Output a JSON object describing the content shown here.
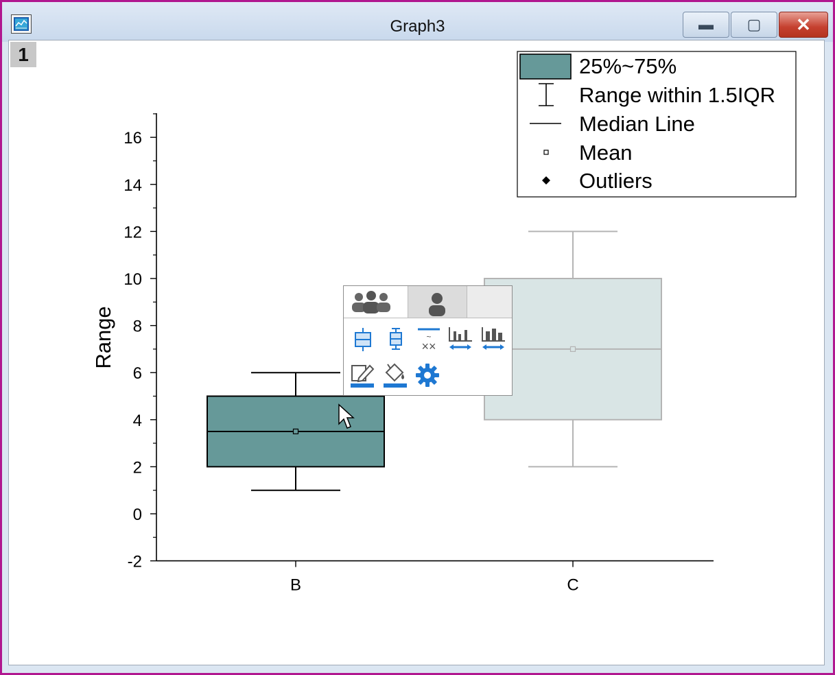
{
  "window": {
    "title": "Graph3",
    "layer_number": "1",
    "controls": {
      "minimize": "▬",
      "maximize": "▢",
      "close": "✕"
    }
  },
  "colors": {
    "box_fill": "#669999",
    "box_fill_faded": "#d9e5e5",
    "box_stroke": "#000000",
    "faded_stroke": "#b4b4b4",
    "toolbar_blue": "#1e78d2",
    "toolbar_gray": "#555555"
  },
  "chart_data": {
    "type": "box",
    "ylabel": "Range",
    "xlabel": "",
    "ylim": [
      -2,
      17
    ],
    "y_ticks": [
      -2,
      0,
      2,
      4,
      6,
      8,
      10,
      12,
      14,
      16
    ],
    "categories": [
      "B",
      "C"
    ],
    "boxes": [
      {
        "category": "B",
        "whisker_low": 1,
        "q1": 2,
        "median": 3.5,
        "q3": 5,
        "whisker_high": 6,
        "mean": 3.5,
        "selected": true
      },
      {
        "category": "C",
        "whisker_low": 2,
        "q1": 4,
        "median": 7,
        "q3": 10,
        "whisker_high": 12,
        "mean": 7,
        "selected": false
      }
    ],
    "legend": {
      "position": "top-right",
      "entries": [
        "25%~75%",
        "Range within 1.5IQR",
        "Median Line",
        "Mean",
        "Outliers"
      ]
    }
  },
  "mini_toolbar": {
    "tabs": [
      {
        "icon": "group-users-icon",
        "active": true
      },
      {
        "icon": "single-user-icon",
        "active": false
      }
    ],
    "row1_icons": [
      "box-plot-icon",
      "box-whisker-icon",
      "outlier-symbols-icon",
      "gap-between-boxes-icon",
      "box-width-icon"
    ],
    "row2_icons": [
      "edit-line-color-icon",
      "fill-color-icon",
      "settings-gear-icon"
    ]
  }
}
